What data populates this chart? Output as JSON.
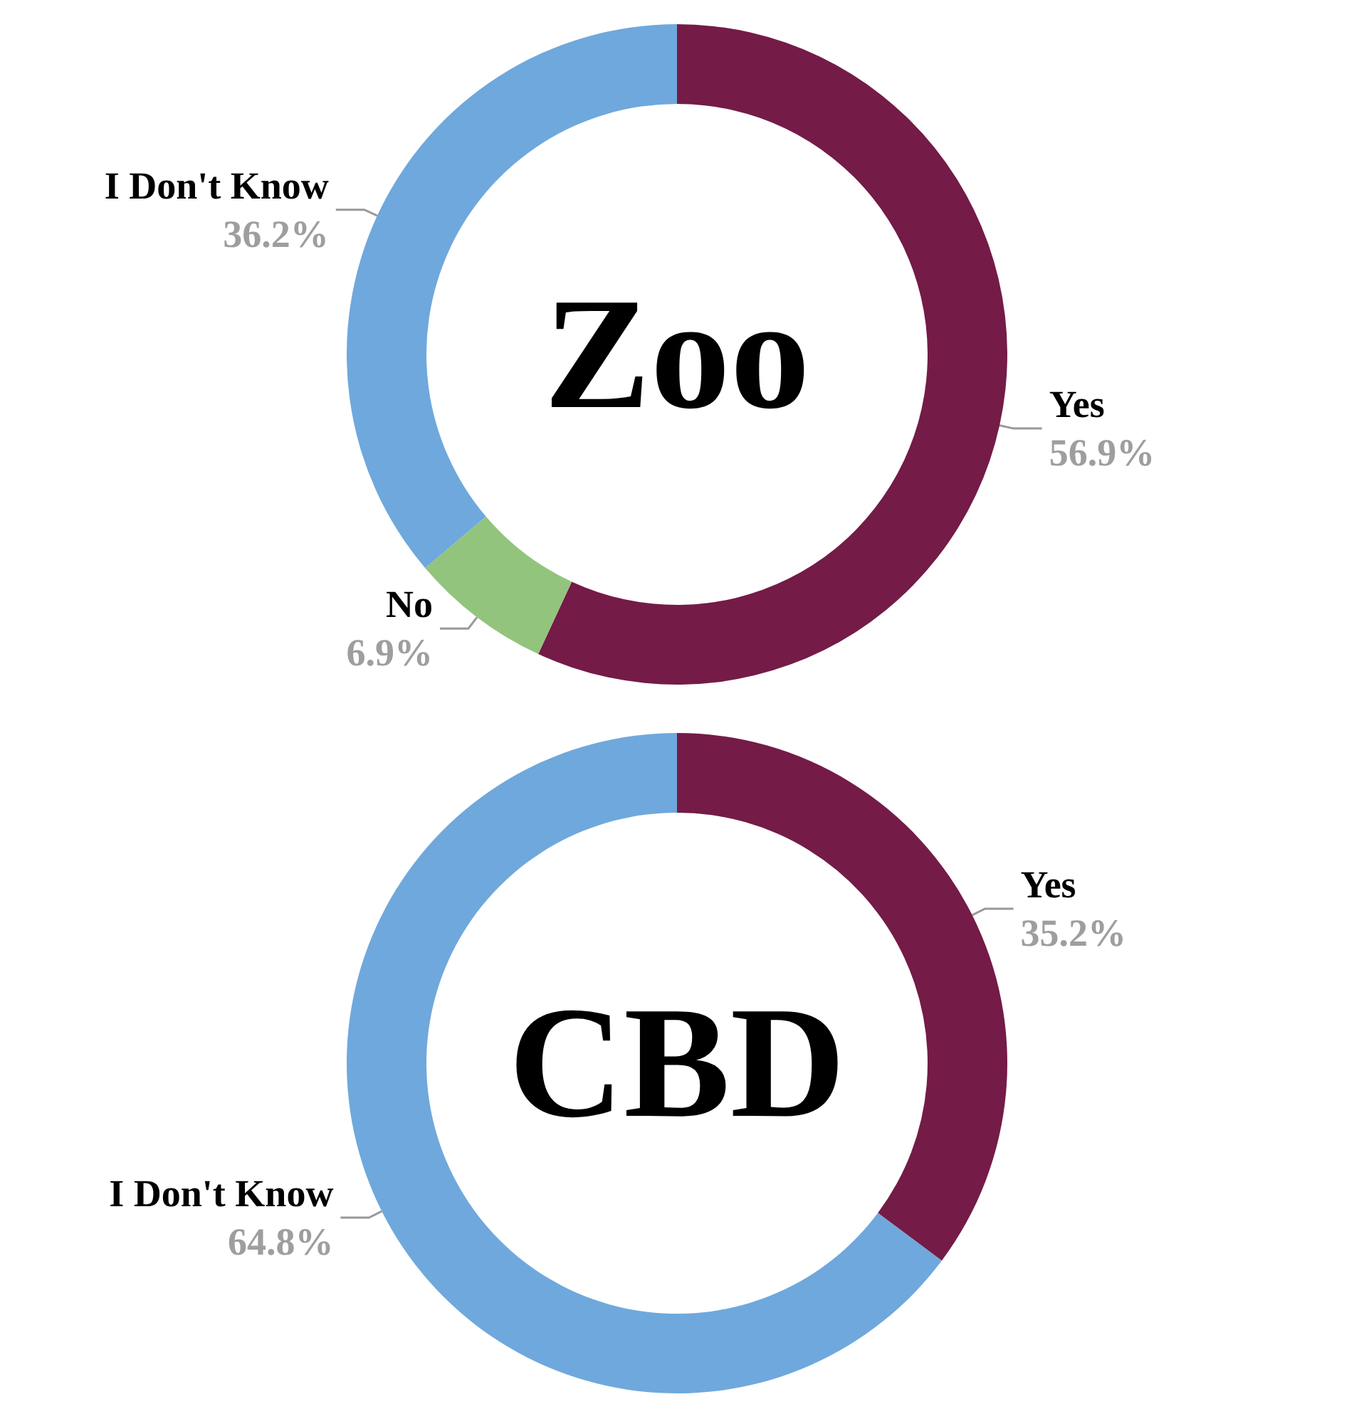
{
  "chart_data": [
    {
      "type": "donut",
      "title": "Zoo",
      "categories": [
        "Yes",
        "No",
        "I Don't Know"
      ],
      "values": [
        56.9,
        6.9,
        36.2
      ],
      "colors": [
        "#741b47",
        "#93c47d",
        "#6fa8dc"
      ],
      "value_labels": [
        "56.9%",
        "6.9%",
        "36.2%"
      ]
    },
    {
      "type": "donut",
      "title": "CBD",
      "categories": [
        "Yes",
        "I Don't Know"
      ],
      "values": [
        35.2,
        64.8
      ],
      "colors": [
        "#741b47",
        "#6fa8dc"
      ],
      "value_labels": [
        "35.2%",
        "64.8%"
      ]
    }
  ]
}
